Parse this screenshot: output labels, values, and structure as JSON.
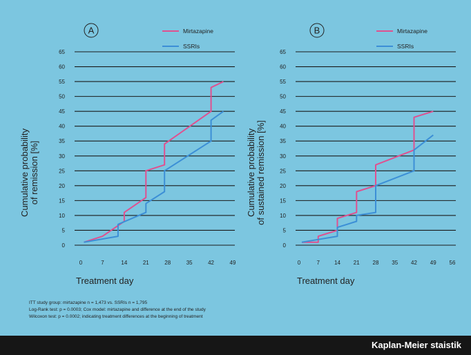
{
  "colors": {
    "background": "#7cc6e0",
    "mirtazapine": "#e0508f",
    "ssri": "#3c8fd6",
    "grid": "#1a1a1a",
    "footer_bar": "#161616"
  },
  "chart_data": [
    {
      "type": "line",
      "panel_label": "A",
      "ylabel": "Cumulative probability of remission [%]",
      "xlabel": "Treatment day",
      "xlim": [
        0,
        49
      ],
      "ylim": [
        0,
        65
      ],
      "x_ticks": [
        0,
        7,
        14,
        21,
        28,
        35,
        42,
        49
      ],
      "x_tick_labels": [
        "0",
        "7",
        "14",
        "21",
        "28",
        "35",
        "42",
        "49"
      ],
      "y_ticks": [
        0,
        5,
        10,
        15,
        20,
        25,
        30,
        35,
        40,
        45,
        50,
        55,
        60,
        65
      ],
      "y_tick_labels": [
        "0",
        "5",
        "10",
        "15",
        "20",
        "25",
        "30",
        "35",
        "40",
        "45",
        "50",
        "55",
        "60",
        "65"
      ],
      "grid": "horizontal",
      "legend_position": "top-right",
      "series": [
        {
          "name": "Mirtazapine",
          "color": "#e0508f",
          "points": [
            [
              1,
              1
            ],
            [
              7,
              3
            ],
            [
              14,
              8
            ],
            [
              14,
              11
            ],
            [
              21,
              16
            ],
            [
              21,
              25
            ],
            [
              27,
              27
            ],
            [
              27,
              34
            ],
            [
              42,
              45
            ],
            [
              42,
              53
            ],
            [
              46,
              55
            ]
          ]
        },
        {
          "name": "SSRIs",
          "color": "#3c8fd6",
          "points": [
            [
              1,
              1
            ],
            [
              12,
              3
            ],
            [
              12,
              7
            ],
            [
              21,
              11
            ],
            [
              21,
              14
            ],
            [
              27,
              18
            ],
            [
              27,
              25
            ],
            [
              42,
              35
            ],
            [
              42,
              42
            ],
            [
              46,
              45
            ]
          ]
        }
      ]
    },
    {
      "type": "line",
      "panel_label": "B",
      "ylabel": "Cumulative probability of sustained remission [%]",
      "xlabel": "Treatment day",
      "xlim": [
        0,
        56
      ],
      "ylim": [
        0,
        65
      ],
      "x_ticks": [
        0,
        7,
        14,
        21,
        28,
        35,
        42,
        49,
        56
      ],
      "x_tick_labels": [
        "0",
        "7",
        "14",
        "21",
        "28",
        "35",
        "42",
        "49",
        "56"
      ],
      "y_ticks": [
        0,
        5,
        10,
        15,
        20,
        25,
        30,
        35,
        40,
        45,
        50,
        55,
        60,
        65
      ],
      "y_tick_labels": [
        "0",
        "5",
        "10",
        "15",
        "20",
        "25",
        "30",
        "35",
        "40",
        "45",
        "50",
        "55",
        "60",
        "65"
      ],
      "grid": "horizontal",
      "legend_position": "top-right",
      "series": [
        {
          "name": "Mirtazapine",
          "color": "#e0508f",
          "points": [
            [
              1,
              1
            ],
            [
              7,
              1
            ],
            [
              7,
              3
            ],
            [
              14,
              5
            ],
            [
              14,
              9
            ],
            [
              21,
              11
            ],
            [
              21,
              18
            ],
            [
              28,
              20
            ],
            [
              28,
              27
            ],
            [
              42,
              32
            ],
            [
              42,
              43
            ],
            [
              49,
              45
            ]
          ]
        },
        {
          "name": "SSRIs",
          "color": "#3c8fd6",
          "points": [
            [
              1,
              1
            ],
            [
              14,
              3
            ],
            [
              14,
              6
            ],
            [
              21,
              8
            ],
            [
              21,
              10
            ],
            [
              28,
              11
            ],
            [
              28,
              20
            ],
            [
              42,
              25
            ],
            [
              42,
              32
            ],
            [
              49,
              37
            ]
          ]
        }
      ]
    }
  ],
  "footnotes": [
    "ITT study group: mirtazapine n = 1,473 vs. SSRIs n = 1,795",
    "Log-Rank test: p = 0.0003; Cox model: mirtazapine and difference at the end of the study",
    "Wilcoxon test: p = 0.0002; indicating treatment differences at the beginning of treatment"
  ],
  "caption": "Kaplan-Meier staistik"
}
